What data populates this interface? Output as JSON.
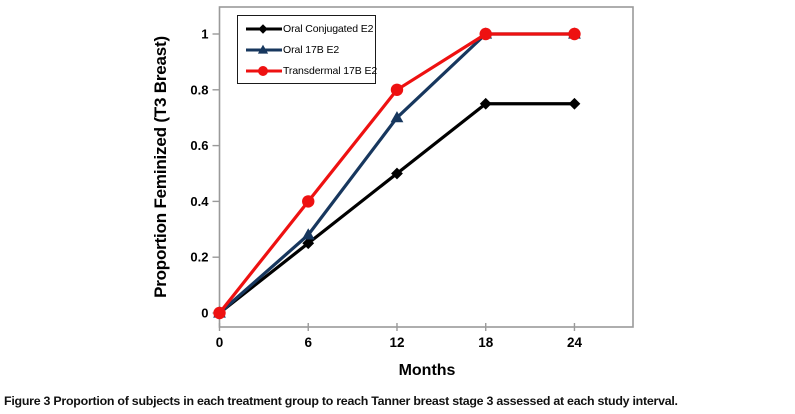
{
  "figure": {
    "caption_label": "Figure 3",
    "caption_text": "Proportion of subjects in each treatment group to reach Tanner breast stage 3 assessed at each study interval."
  },
  "chart_data": {
    "type": "line",
    "title": "",
    "xlabel": "Months",
    "ylabel": "Proportion Feminized (T3 Breast)",
    "x": [
      0,
      6,
      12,
      18,
      24
    ],
    "xticks": [
      0,
      6,
      12,
      18,
      24
    ],
    "yticks": [
      0,
      0.2,
      0.4,
      0.6,
      0.8,
      1
    ],
    "xlim": [
      0,
      28
    ],
    "ylim": [
      -0.05,
      1.1
    ],
    "grid": false,
    "legend_position": "top-left-inside",
    "axis_color": "#9a9a9a",
    "series": [
      {
        "name": "Oral Conjugated E2",
        "color": "#000000",
        "marker": "diamond",
        "values": [
          0,
          0.25,
          0.5,
          0.75,
          0.75
        ]
      },
      {
        "name": "Oral 17B E2",
        "color": "#17375E",
        "marker": "triangle",
        "values": [
          0,
          0.28,
          0.7,
          1,
          1
        ]
      },
      {
        "name": "Transdermal 17B E2",
        "color": "#EE1111",
        "marker": "circle",
        "values": [
          0,
          0.4,
          0.8,
          1,
          1
        ]
      }
    ]
  }
}
